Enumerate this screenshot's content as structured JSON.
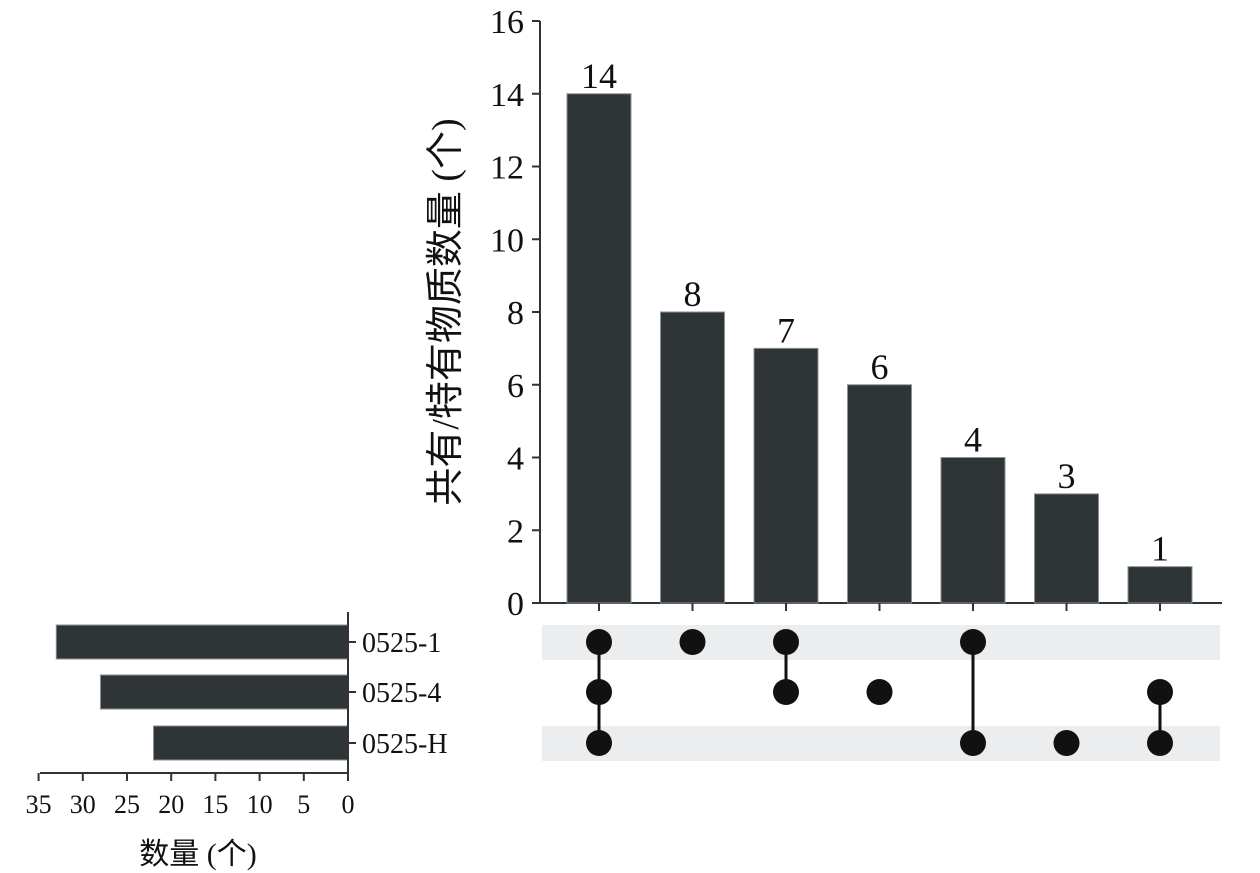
{
  "chart_data": {
    "type": "bar",
    "subtype": "upset",
    "intersection_bars": {
      "ylabel": "共有/特有物质数量 (个)",
      "ylim": [
        0,
        16
      ],
      "yticks": [
        0,
        2,
        4,
        6,
        8,
        10,
        12,
        14,
        16
      ],
      "values": [
        14,
        8,
        7,
        6,
        4,
        3,
        1
      ],
      "data_labels": [
        "14",
        "8",
        "7",
        "6",
        "4",
        "3",
        "1"
      ]
    },
    "set_sizes": {
      "sets": [
        "0525-1",
        "0525-4",
        "0525-H"
      ],
      "values": [
        33,
        28,
        22
      ],
      "xlabel": "数量 (个)",
      "xlim": [
        0,
        35
      ],
      "xticks": [
        35,
        30,
        25,
        20,
        15,
        10,
        5,
        0
      ]
    },
    "matrix": [
      [
        "0525-1",
        "0525-4",
        "0525-H"
      ],
      [
        "0525-1"
      ],
      [
        "0525-1",
        "0525-4"
      ],
      [
        "0525-4"
      ],
      [
        "0525-1",
        "0525-H"
      ],
      [
        "0525-H"
      ],
      [
        "0525-4",
        "0525-H"
      ]
    ],
    "grid": false
  },
  "colors": {
    "bar": "#2f3437",
    "dot": "#111111",
    "stripe": "#ecedee",
    "axis": "#333333"
  }
}
